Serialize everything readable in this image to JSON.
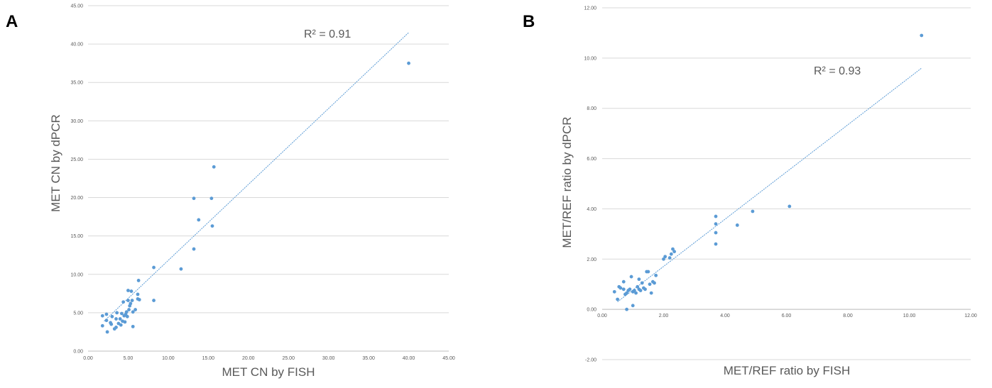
{
  "colors": {
    "marker": "#5b9bd5",
    "trendline": "#5b9bd5",
    "text": "#595959",
    "grid": "#d9d9d9"
  },
  "chart_data": [
    {
      "panel_label": "A",
      "type": "scatter",
      "xlabel": "MET CN by FISH",
      "ylabel": "MET CN by dPCR",
      "xlim": [
        0,
        45
      ],
      "ylim": [
        0,
        45
      ],
      "x_ticks": [
        "0.00",
        "5.00",
        "10.00",
        "15.00",
        "20.00",
        "25.00",
        "30.00",
        "35.00",
        "40.00",
        "45.00"
      ],
      "y_ticks": [
        "0.00",
        "5.00",
        "10.00",
        "15.00",
        "20.00",
        "25.00",
        "30.00",
        "35.00",
        "40.00",
        "45.00"
      ],
      "grid": "horizontal",
      "trendline": {
        "x": [
          2.0,
          40.0
        ],
        "y": [
          3.9,
          41.5
        ],
        "annotation": "R² = 0.91"
      },
      "points": [
        [
          1.8,
          3.3
        ],
        [
          1.8,
          4.6
        ],
        [
          2.3,
          4.8
        ],
        [
          2.3,
          4.0
        ],
        [
          2.4,
          2.5
        ],
        [
          2.8,
          3.7
        ],
        [
          2.9,
          3.5
        ],
        [
          3.0,
          4.5
        ],
        [
          3.3,
          2.9
        ],
        [
          3.5,
          3.1
        ],
        [
          3.5,
          4.2
        ],
        [
          3.6,
          5.0
        ],
        [
          3.8,
          3.6
        ],
        [
          4.0,
          4.2
        ],
        [
          4.1,
          3.4
        ],
        [
          4.2,
          4.9
        ],
        [
          4.3,
          3.9
        ],
        [
          4.4,
          6.4
        ],
        [
          4.5,
          4.6
        ],
        [
          4.6,
          3.8
        ],
        [
          4.7,
          4.8
        ],
        [
          4.8,
          5.1
        ],
        [
          4.9,
          4.5
        ],
        [
          5.0,
          6.6
        ],
        [
          5.0,
          7.9
        ],
        [
          5.1,
          5.4
        ],
        [
          5.2,
          5.9
        ],
        [
          5.3,
          6.2
        ],
        [
          5.4,
          7.8
        ],
        [
          5.5,
          6.6
        ],
        [
          5.6,
          5.1
        ],
        [
          5.6,
          3.2
        ],
        [
          5.9,
          5.4
        ],
        [
          6.2,
          6.8
        ],
        [
          6.2,
          7.4
        ],
        [
          6.3,
          9.2
        ],
        [
          6.4,
          6.7
        ],
        [
          8.2,
          10.9
        ],
        [
          8.2,
          6.6
        ],
        [
          11.6,
          10.7
        ],
        [
          13.2,
          13.3
        ],
        [
          13.2,
          19.9
        ],
        [
          13.8,
          17.1
        ],
        [
          15.4,
          19.9
        ],
        [
          15.5,
          16.3
        ],
        [
          15.7,
          24.0
        ],
        [
          40.0,
          37.5
        ]
      ]
    },
    {
      "panel_label": "B",
      "type": "scatter",
      "xlabel": "MET/REF ratio by FISH",
      "ylabel": "MET/REF ratio by dPCR",
      "xlim": [
        0,
        12
      ],
      "ylim": [
        -2,
        12
      ],
      "x_ticks": [
        "0.00",
        "2.00",
        "4.00",
        "6.00",
        "8.00",
        "10.00",
        "12.00"
      ],
      "y_ticks": [
        "-2.00",
        "0.00",
        "2.00",
        "4.00",
        "6.00",
        "8.00",
        "10.00",
        "12.00"
      ],
      "grid": "horizontal",
      "trendline": {
        "x": [
          0.5,
          10.4
        ],
        "y": [
          0.3,
          9.6
        ],
        "annotation": "R² = 0.93"
      },
      "points": [
        [
          0.4,
          0.7
        ],
        [
          0.5,
          0.4
        ],
        [
          0.55,
          0.9
        ],
        [
          0.6,
          0.85
        ],
        [
          0.7,
          1.1
        ],
        [
          0.7,
          0.8
        ],
        [
          0.75,
          0.6
        ],
        [
          0.8,
          0.65
        ],
        [
          0.8,
          0.0
        ],
        [
          0.85,
          0.75
        ],
        [
          0.9,
          0.8
        ],
        [
          0.95,
          1.3
        ],
        [
          1.0,
          0.15
        ],
        [
          1.0,
          0.7
        ],
        [
          1.05,
          0.75
        ],
        [
          1.1,
          0.65
        ],
        [
          1.15,
          0.9
        ],
        [
          1.2,
          0.8
        ],
        [
          1.2,
          1.2
        ],
        [
          1.25,
          0.75
        ],
        [
          1.3,
          1.05
        ],
        [
          1.35,
          0.85
        ],
        [
          1.4,
          0.8
        ],
        [
          1.45,
          1.5
        ],
        [
          1.5,
          1.5
        ],
        [
          1.55,
          1.0
        ],
        [
          1.6,
          0.65
        ],
        [
          1.65,
          1.1
        ],
        [
          1.7,
          1.05
        ],
        [
          1.75,
          1.35
        ],
        [
          2.0,
          2.0
        ],
        [
          2.05,
          2.1
        ],
        [
          2.2,
          2.05
        ],
        [
          2.25,
          2.2
        ],
        [
          2.3,
          2.4
        ],
        [
          2.35,
          2.3
        ],
        [
          3.7,
          2.6
        ],
        [
          3.7,
          3.05
        ],
        [
          3.7,
          3.4
        ],
        [
          3.7,
          3.7
        ],
        [
          4.4,
          3.35
        ],
        [
          4.9,
          3.9
        ],
        [
          6.1,
          4.1
        ],
        [
          10.4,
          10.9
        ]
      ]
    }
  ]
}
